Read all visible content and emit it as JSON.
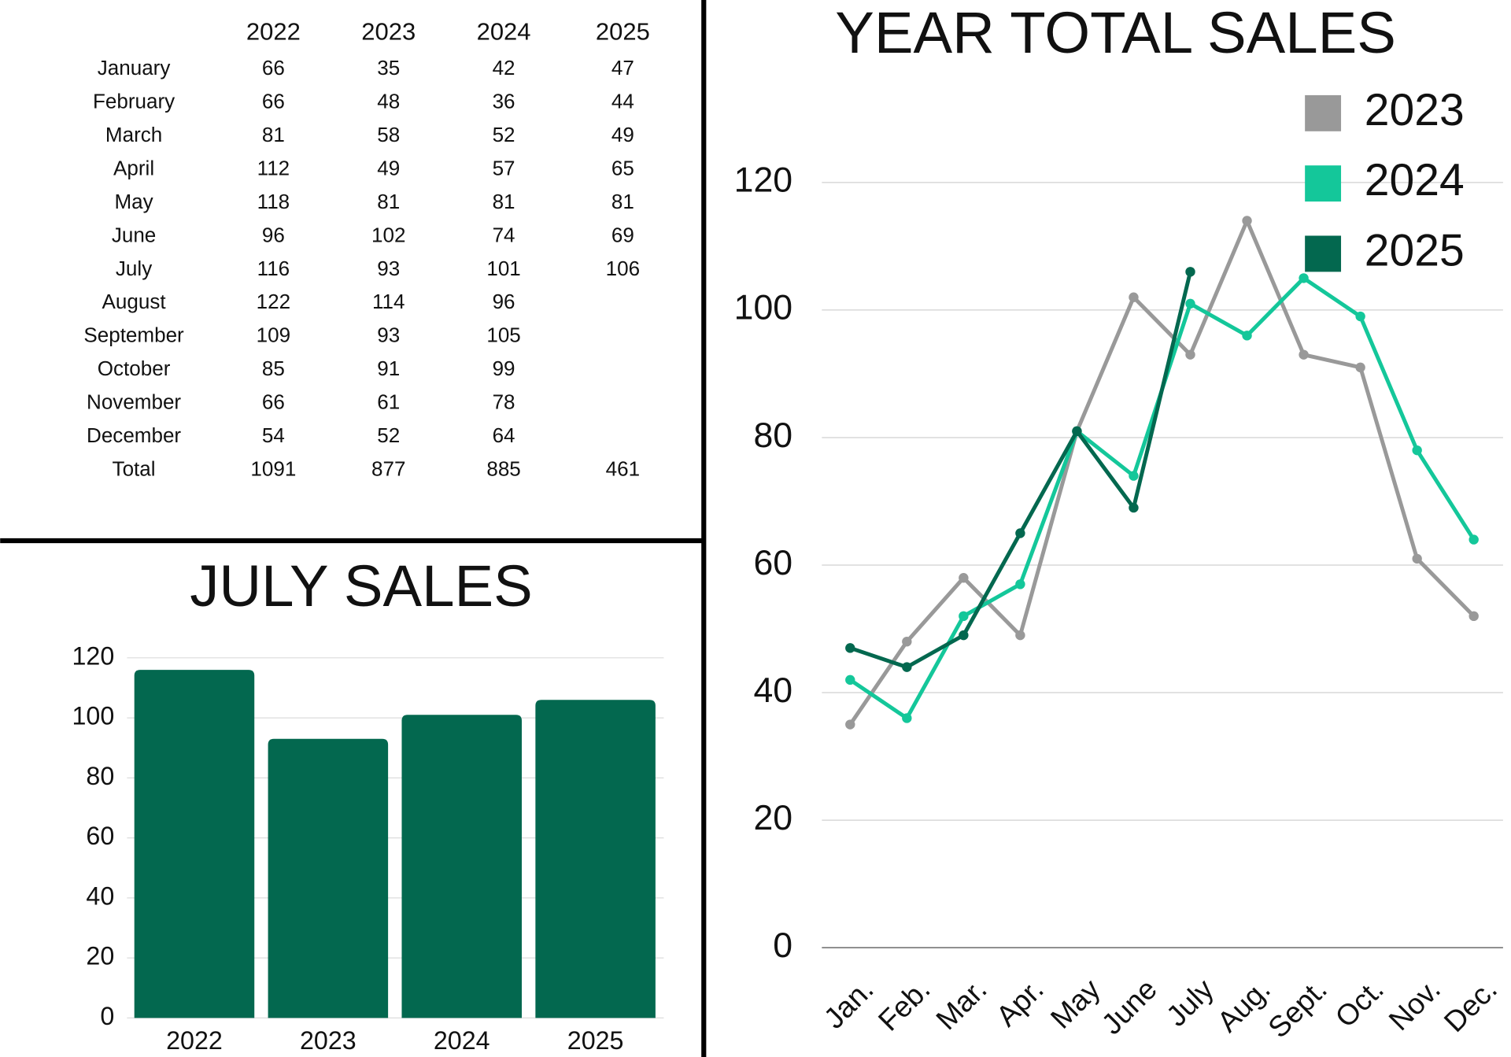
{
  "table": {
    "columns": [
      "2022",
      "2023",
      "2024",
      "2025"
    ],
    "rows": [
      {
        "label": "January",
        "values": [
          66,
          35,
          42,
          47
        ]
      },
      {
        "label": "February",
        "values": [
          66,
          48,
          36,
          44
        ]
      },
      {
        "label": "March",
        "values": [
          81,
          58,
          52,
          49
        ]
      },
      {
        "label": "April",
        "values": [
          112,
          49,
          57,
          65
        ]
      },
      {
        "label": "May",
        "values": [
          118,
          81,
          81,
          81
        ]
      },
      {
        "label": "June",
        "values": [
          96,
          102,
          74,
          69
        ]
      },
      {
        "label": "July",
        "values": [
          116,
          93,
          101,
          106
        ]
      },
      {
        "label": "August",
        "values": [
          122,
          114,
          96,
          null
        ]
      },
      {
        "label": "September",
        "values": [
          109,
          93,
          105,
          null
        ]
      },
      {
        "label": "October",
        "values": [
          85,
          91,
          99,
          null
        ]
      },
      {
        "label": "November",
        "values": [
          66,
          61,
          78,
          null
        ]
      },
      {
        "label": "December",
        "values": [
          54,
          52,
          64,
          null
        ]
      },
      {
        "label": "Total",
        "values": [
          1091,
          877,
          885,
          461
        ]
      }
    ]
  },
  "chart_data": [
    {
      "type": "bar",
      "title": "JULY SALES",
      "categories": [
        "2022",
        "2023",
        "2024",
        "2025"
      ],
      "values": [
        116,
        93,
        101,
        106
      ],
      "color": "#03684f",
      "ylim": [
        0,
        120
      ],
      "yticks": [
        0,
        20,
        40,
        60,
        80,
        100,
        120
      ],
      "grid": true
    },
    {
      "type": "line",
      "title": "YEAR TOTAL SALES",
      "categories": [
        "Jan.",
        "Feb.",
        "Mar.",
        "Apr.",
        "May",
        "June",
        "July",
        "Aug.",
        "Sept.",
        "Oct.",
        "Nov.",
        "Dec."
      ],
      "series": [
        {
          "name": "2023",
          "color": "#999999",
          "values": [
            35,
            48,
            58,
            49,
            81,
            102,
            93,
            114,
            93,
            91,
            61,
            52
          ]
        },
        {
          "name": "2024",
          "color": "#14c79a",
          "values": [
            42,
            36,
            52,
            57,
            81,
            74,
            101,
            96,
            105,
            99,
            78,
            64
          ]
        },
        {
          "name": "2025",
          "color": "#03684f",
          "values": [
            47,
            44,
            49,
            65,
            81,
            69,
            106,
            null,
            null,
            null,
            null,
            null
          ]
        }
      ],
      "ylim": [
        0,
        120
      ],
      "yticks": [
        0,
        20,
        40,
        60,
        80,
        100,
        120
      ],
      "grid": true,
      "legend": "top-right"
    }
  ]
}
